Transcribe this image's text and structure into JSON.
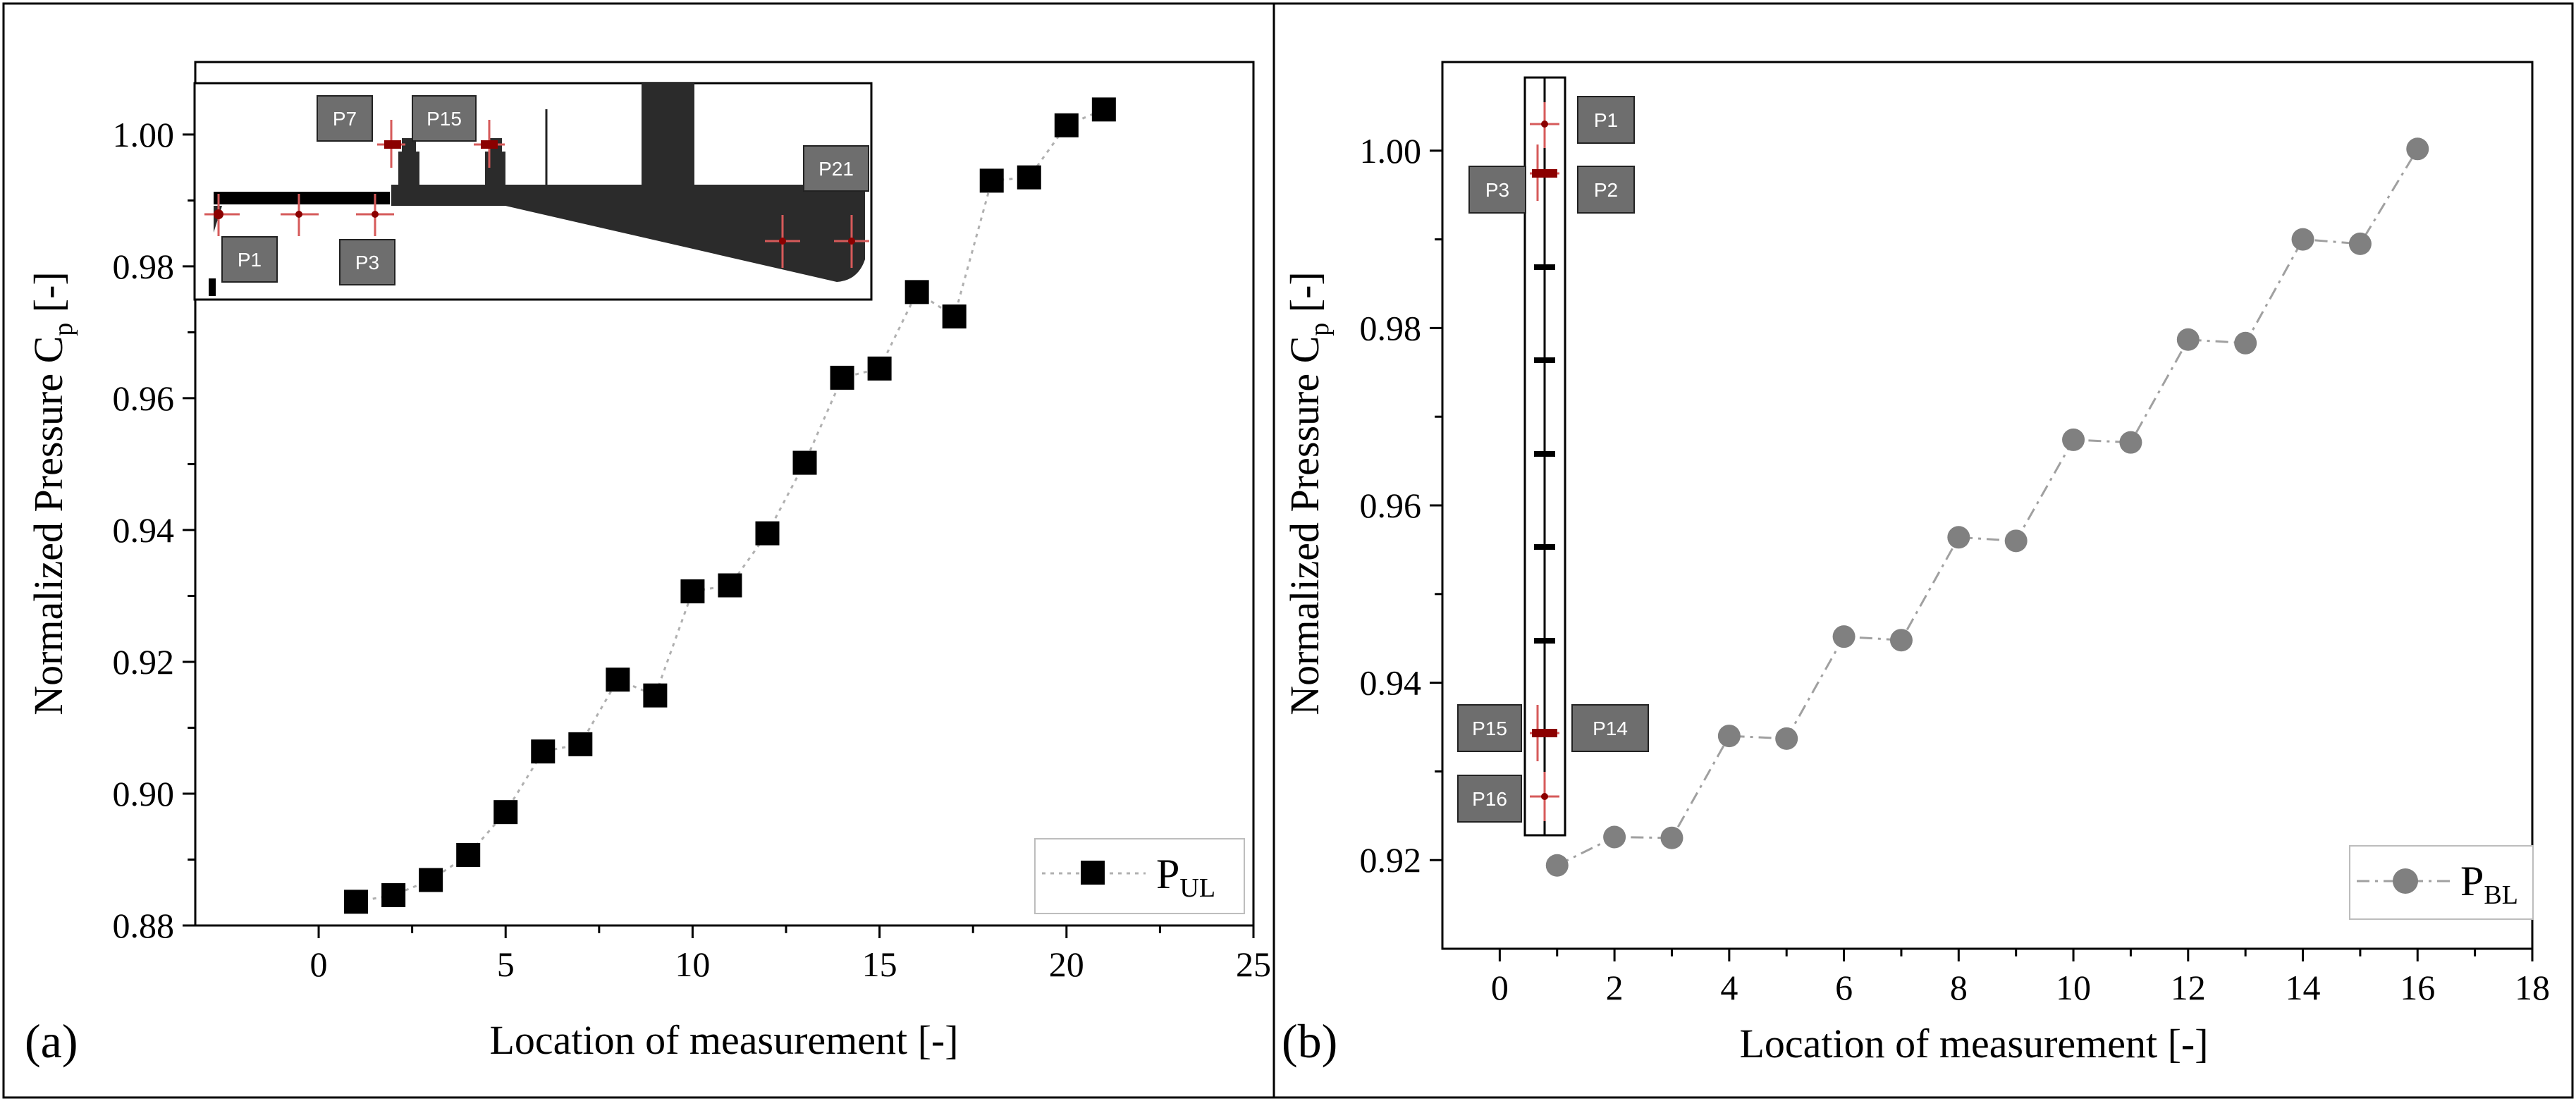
{
  "chart_data": [
    {
      "panel": "(a)",
      "type": "scatter",
      "title": "",
      "xlabel": "Location of measurement [-]",
      "ylabel_main": "Normalized Pressure C",
      "ylabel_sub": "p",
      "ylabel_tail": "[-]",
      "xlim": [
        -3.3,
        25
      ],
      "ylim": [
        0.88,
        1.011
      ],
      "xticks": [
        0,
        5,
        10,
        15,
        20,
        25
      ],
      "xtick_labels": [
        "0",
        "5",
        "10",
        "15",
        "20",
        "25"
      ],
      "yticks": [
        0.88,
        0.9,
        0.92,
        0.94,
        0.96,
        0.98,
        1.0
      ],
      "ytick_labels": [
        "0.88",
        "0.90",
        "0.92",
        "0.94",
        "0.96",
        "0.98",
        "1.00"
      ],
      "legend_main": "P",
      "legend_sub": "UL",
      "legend_position": "bottom-right",
      "series": [
        {
          "name": "P_UL",
          "marker": "square",
          "color": "#000000",
          "line_color": "#b0b0b0",
          "x": [
            1,
            2,
            3,
            4,
            5,
            6,
            7,
            8,
            9,
            10,
            11,
            12,
            13,
            14,
            15,
            16,
            17,
            18,
            19,
            20,
            21
          ],
          "y": [
            0.8836,
            0.8846,
            0.8869,
            0.8907,
            0.8972,
            0.9064,
            0.9075,
            0.9173,
            0.9149,
            0.9307,
            0.9316,
            0.9395,
            0.9502,
            0.9631,
            0.9645,
            0.9761,
            0.9724,
            0.993,
            0.9935,
            1.0014,
            1.0038
          ]
        }
      ],
      "inset_labels": [
        "P1",
        "P3",
        "P7",
        "P15",
        "P21"
      ]
    },
    {
      "panel": "(b)",
      "type": "scatter",
      "title": "",
      "xlabel": "Location of measurement [-]",
      "ylabel_main": "Normalized Pressure C",
      "ylabel_sub": "p",
      "ylabel_tail": "[-]",
      "xlim": [
        -1,
        18
      ],
      "ylim": [
        0.91,
        1.01
      ],
      "xticks": [
        0,
        2,
        4,
        6,
        8,
        10,
        12,
        14,
        16,
        18
      ],
      "xtick_labels": [
        "0",
        "2",
        "4",
        "6",
        "8",
        "10",
        "12",
        "14",
        "16",
        "18"
      ],
      "yticks": [
        0.92,
        0.94,
        0.96,
        0.98,
        1.0
      ],
      "ytick_labels": [
        "0.92",
        "0.94",
        "0.96",
        "0.98",
        "1.00"
      ],
      "legend_main": "P",
      "legend_sub": "BL",
      "legend_position": "bottom-right",
      "series": [
        {
          "name": "P_BL",
          "marker": "circle",
          "color": "#808080",
          "line_color": "#a0a0a0",
          "x": [
            1,
            2,
            3,
            4,
            5,
            6,
            7,
            8,
            9,
            10,
            11,
            12,
            13,
            14,
            15,
            16
          ],
          "y": [
            0.9194,
            0.9226,
            0.9225,
            0.934,
            0.9337,
            0.9452,
            0.9448,
            0.9564,
            0.956,
            0.9674,
            0.9671,
            0.9787,
            0.9783,
            0.99,
            0.9895,
            1.0002
          ]
        }
      ],
      "inset_labels": [
        "P1",
        "P2",
        "P3",
        "P14",
        "P15",
        "P16"
      ]
    }
  ]
}
